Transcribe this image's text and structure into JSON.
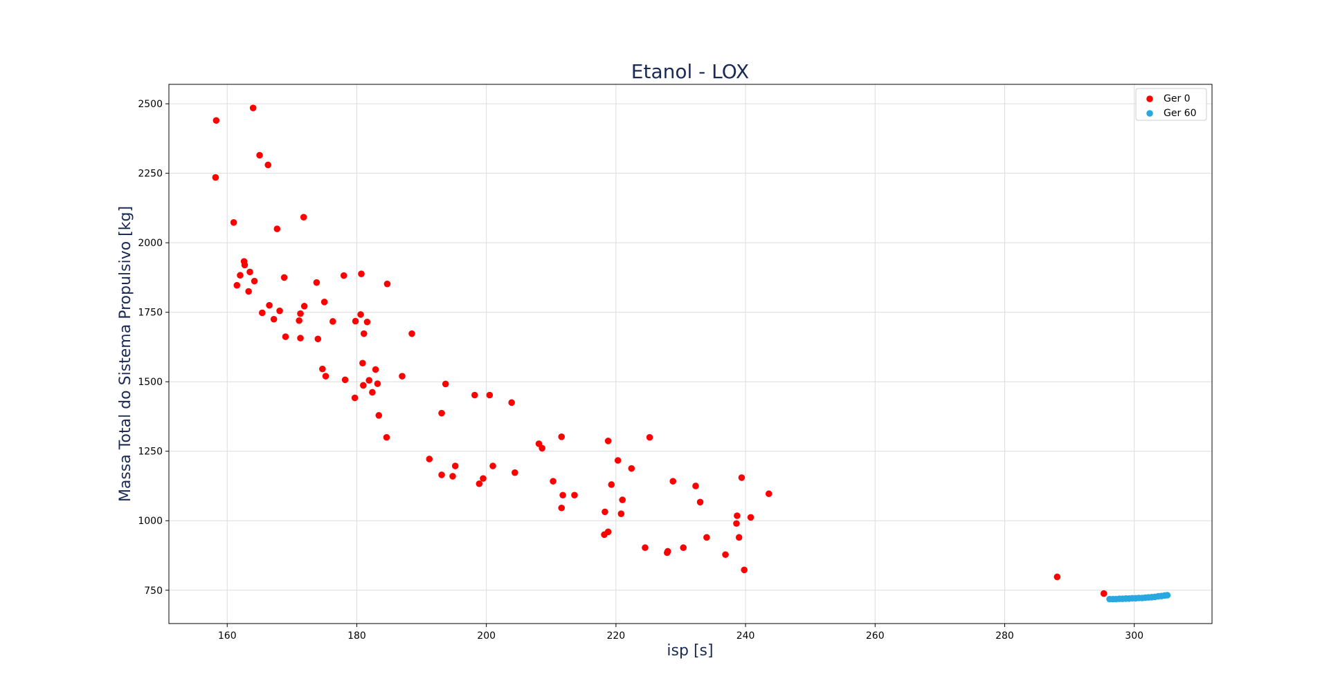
{
  "chart_data": {
    "type": "scatter",
    "title": "Etanol - LOX",
    "xlabel": "isp [s]",
    "ylabel": "Massa Total do Sistema Propulsivo [kg]",
    "xlim": [
      151,
      312
    ],
    "ylim": [
      630,
      2570
    ],
    "xticks": [
      160,
      180,
      200,
      220,
      240,
      260,
      280,
      300
    ],
    "yticks": [
      750,
      1000,
      1250,
      1500,
      1750,
      2000,
      2250,
      2500
    ],
    "grid": true,
    "legend_position": "top-right",
    "series": [
      {
        "name": "Ger 0",
        "color": "#ff0000",
        "points": [
          [
            158.3,
            2440
          ],
          [
            158.2,
            2235
          ],
          [
            164.0,
            2485
          ],
          [
            165.0,
            2315
          ],
          [
            166.3,
            2280
          ],
          [
            161.0,
            2073
          ],
          [
            167.7,
            2050
          ],
          [
            171.8,
            2092
          ],
          [
            162.6,
            1933
          ],
          [
            162.7,
            1920
          ],
          [
            163.5,
            1895
          ],
          [
            162.0,
            1883
          ],
          [
            164.2,
            1862
          ],
          [
            161.5,
            1847
          ],
          [
            163.3,
            1825
          ],
          [
            168.8,
            1875
          ],
          [
            173.8,
            1857
          ],
          [
            178.0,
            1882
          ],
          [
            180.7,
            1888
          ],
          [
            184.7,
            1852
          ],
          [
            166.5,
            1775
          ],
          [
            165.4,
            1748
          ],
          [
            167.2,
            1725
          ],
          [
            168.1,
            1755
          ],
          [
            171.3,
            1745
          ],
          [
            171.9,
            1772
          ],
          [
            175.0,
            1787
          ],
          [
            171.1,
            1720
          ],
          [
            176.3,
            1717
          ],
          [
            179.8,
            1718
          ],
          [
            180.6,
            1742
          ],
          [
            181.6,
            1715
          ],
          [
            181.1,
            1673
          ],
          [
            169.0,
            1662
          ],
          [
            171.3,
            1657
          ],
          [
            174.0,
            1654
          ],
          [
            188.5,
            1673
          ],
          [
            180.9,
            1567
          ],
          [
            174.7,
            1546
          ],
          [
            175.2,
            1520
          ],
          [
            178.2,
            1507
          ],
          [
            181.9,
            1505
          ],
          [
            182.9,
            1544
          ],
          [
            181.0,
            1487
          ],
          [
            183.2,
            1493
          ],
          [
            182.4,
            1462
          ],
          [
            187.0,
            1520
          ],
          [
            193.7,
            1492
          ],
          [
            179.7,
            1442
          ],
          [
            183.4,
            1379
          ],
          [
            184.6,
            1300
          ],
          [
            193.1,
            1387
          ],
          [
            198.2,
            1452
          ],
          [
            200.5,
            1452
          ],
          [
            203.9,
            1425
          ],
          [
            191.2,
            1222
          ],
          [
            193.1,
            1165
          ],
          [
            195.2,
            1197
          ],
          [
            194.8,
            1160
          ],
          [
            199.5,
            1152
          ],
          [
            198.9,
            1133
          ],
          [
            201.0,
            1197
          ],
          [
            204.4,
            1173
          ],
          [
            208.1,
            1277
          ],
          [
            208.6,
            1261
          ],
          [
            211.6,
            1302
          ],
          [
            218.8,
            1287
          ],
          [
            225.2,
            1300
          ],
          [
            210.3,
            1142
          ],
          [
            211.8,
            1092
          ],
          [
            213.6,
            1092
          ],
          [
            211.6,
            1046
          ],
          [
            219.3,
            1130
          ],
          [
            220.3,
            1217
          ],
          [
            222.4,
            1188
          ],
          [
            221.0,
            1075
          ],
          [
            220.8,
            1025
          ],
          [
            218.3,
            1032
          ],
          [
            218.2,
            950
          ],
          [
            218.8,
            960
          ],
          [
            224.5,
            903
          ],
          [
            227.9,
            885
          ],
          [
            228.0,
            890
          ],
          [
            230.4,
            903
          ],
          [
            228.8,
            1142
          ],
          [
            232.3,
            1125
          ],
          [
            233.0,
            1067
          ],
          [
            234.0,
            940
          ],
          [
            236.9,
            878
          ],
          [
            238.6,
            990
          ],
          [
            238.7,
            1018
          ],
          [
            239.0,
            940
          ],
          [
            239.4,
            1155
          ],
          [
            239.8,
            823
          ],
          [
            240.8,
            1012
          ],
          [
            243.6,
            1097
          ],
          [
            288.1,
            798
          ],
          [
            295.3,
            738
          ]
        ]
      },
      {
        "name": "Ger 60",
        "color": "#29a8e0",
        "points": [
          [
            296.2,
            718
          ],
          [
            296.7,
            718
          ],
          [
            297.2,
            718
          ],
          [
            297.7,
            719
          ],
          [
            298.2,
            719
          ],
          [
            298.7,
            720
          ],
          [
            299.2,
            720
          ],
          [
            299.7,
            721
          ],
          [
            300.2,
            721
          ],
          [
            300.7,
            722
          ],
          [
            301.2,
            722
          ],
          [
            301.7,
            723
          ],
          [
            302.2,
            724
          ],
          [
            302.7,
            725
          ],
          [
            303.2,
            726
          ],
          [
            303.7,
            728
          ],
          [
            304.2,
            729
          ],
          [
            304.7,
            731
          ],
          [
            305.1,
            732
          ]
        ]
      }
    ]
  }
}
